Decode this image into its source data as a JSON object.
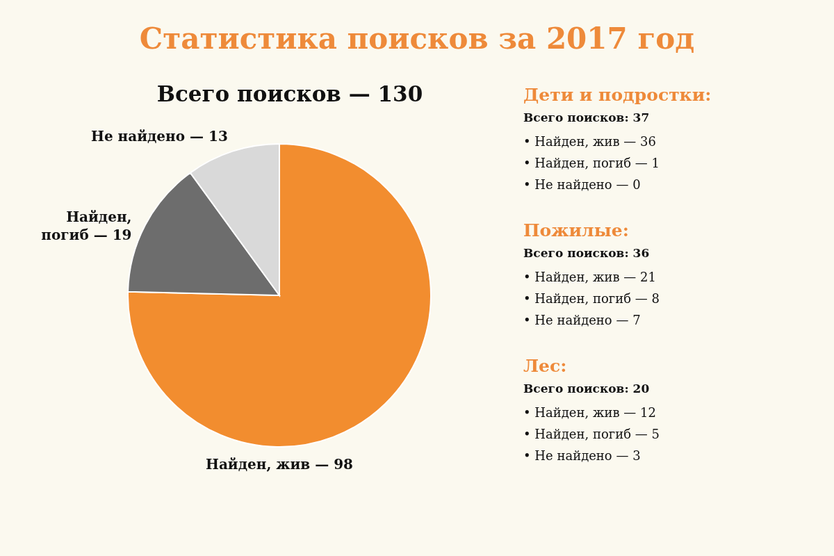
{
  "chart_data": [
    {
      "type": "pie",
      "title": "Статистика поисков за 2017 год",
      "subtitle": "Всего поисков — 130",
      "categories": [
        "Найден, жив — 98",
        "Найден,\nпогиб — 19",
        "Не найдено — 13"
      ],
      "values": [
        98,
        19,
        13
      ],
      "colors": [
        "#f28d2f",
        "#6d6d6d",
        "#d9d9d9"
      ]
    },
    {
      "type": "other",
      "title": "Дети и подростки:",
      "subtitle": "Всего поисков: 37",
      "annotations": [
        "• Найден, жив — 36",
        "• Найден, погиб — 1",
        "• Не найдено — 0"
      ]
    },
    {
      "type": "other",
      "title": "Пожилые:",
      "subtitle": "Всего поисков: 36",
      "annotations": [
        "• Найден, жив — 21",
        "• Найден, погиб — 8",
        "• Не найдено — 7"
      ]
    },
    {
      "type": "other",
      "title": "Лес:",
      "subtitle": "Всего поисков: 20",
      "annotations": [
        "• Найден, жив — 12",
        "• Найден, погиб — 5",
        "• Не найдено — 3"
      ]
    }
  ]
}
